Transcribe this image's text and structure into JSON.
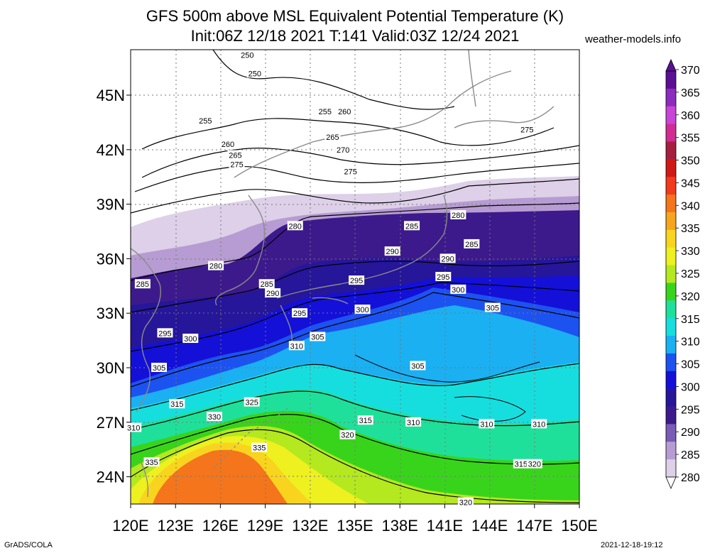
{
  "title": {
    "line1": "GFS 500m above MSL Equivalent Potential Temperature (K)",
    "line2": "Init:06Z 12/18 2021 T:141 Valid:03Z 12/24 2021",
    "site": "weather-models.info"
  },
  "axes": {
    "lat_ticks": [
      "45N",
      "42N",
      "39N",
      "36N",
      "33N",
      "30N",
      "27N",
      "24N"
    ],
    "lon_ticks": [
      "120E",
      "123E",
      "126E",
      "129E",
      "132E",
      "135E",
      "138E",
      "141E",
      "144E",
      "147E",
      "150E"
    ],
    "lon_range": [
      120,
      150
    ],
    "lat_range": [
      22.5,
      47.5
    ]
  },
  "colorbar": {
    "labels": [
      "370",
      "365",
      "360",
      "355",
      "350",
      "345",
      "340",
      "335",
      "330",
      "325",
      "320",
      "315",
      "310",
      "305",
      "300",
      "295",
      "290",
      "285",
      "280"
    ],
    "colors": [
      "#5a0f96",
      "#8c2bbd",
      "#c845d6",
      "#d12b94",
      "#a5203e",
      "#d11818",
      "#f23a1c",
      "#f4751b",
      "#f6a51f",
      "#f8d41f",
      "#eef01f",
      "#b4e81f",
      "#38d41c",
      "#1fe09b",
      "#17dede",
      "#1ab0f2",
      "#1c52f0",
      "#1410d8",
      "#26169a",
      "#3c1a8c",
      "#7a5bb5",
      "#b79cd3",
      "#ddd0e8"
    ]
  },
  "contour_labels": [
    {
      "text": "250",
      "lon": 127.8,
      "lat": 47.2
    },
    {
      "text": "250",
      "lon": 128.3,
      "lat": 46.2
    },
    {
      "text": "255",
      "lon": 125.0,
      "lat": 43.6
    },
    {
      "text": "255",
      "lon": 133.0,
      "lat": 44.1
    },
    {
      "text": "260",
      "lon": 134.3,
      "lat": 44.1
    },
    {
      "text": "260",
      "lon": 126.5,
      "lat": 42.3
    },
    {
      "text": "265",
      "lon": 127.0,
      "lat": 41.7
    },
    {
      "text": "275",
      "lon": 127.1,
      "lat": 41.2
    },
    {
      "text": "265",
      "lon": 133.5,
      "lat": 42.7
    },
    {
      "text": "270",
      "lon": 134.2,
      "lat": 42.0
    },
    {
      "text": "275",
      "lon": 134.7,
      "lat": 40.8
    },
    {
      "text": "275",
      "lon": 146.5,
      "lat": 43.1
    },
    {
      "text": "280",
      "lon": 131.0,
      "lat": 37.8
    },
    {
      "text": "280",
      "lon": 125.7,
      "lat": 35.6
    },
    {
      "text": "280",
      "lon": 141.9,
      "lat": 38.4
    },
    {
      "text": "285",
      "lon": 138.8,
      "lat": 37.8
    },
    {
      "text": "285",
      "lon": 142.8,
      "lat": 36.8
    },
    {
      "text": "285",
      "lon": 120.8,
      "lat": 34.6
    },
    {
      "text": "285",
      "lon": 129.1,
      "lat": 34.6
    },
    {
      "text": "290",
      "lon": 137.5,
      "lat": 36.4
    },
    {
      "text": "290",
      "lon": 141.2,
      "lat": 36.0
    },
    {
      "text": "290",
      "lon": 129.5,
      "lat": 34.1
    },
    {
      "text": "295",
      "lon": 135.1,
      "lat": 34.8
    },
    {
      "text": "295",
      "lon": 140.9,
      "lat": 35.0
    },
    {
      "text": "295",
      "lon": 122.3,
      "lat": 31.9
    },
    {
      "text": "295",
      "lon": 131.3,
      "lat": 33.0
    },
    {
      "text": "300",
      "lon": 141.9,
      "lat": 34.3
    },
    {
      "text": "300",
      "lon": 135.5,
      "lat": 33.2
    },
    {
      "text": "300",
      "lon": 124.0,
      "lat": 31.6
    },
    {
      "text": "305",
      "lon": 144.2,
      "lat": 33.3
    },
    {
      "text": "305",
      "lon": 132.5,
      "lat": 31.7
    },
    {
      "text": "305",
      "lon": 121.9,
      "lat": 30.0
    },
    {
      "text": "305",
      "lon": 139.2,
      "lat": 30.1
    },
    {
      "text": "310",
      "lon": 131.1,
      "lat": 31.2
    },
    {
      "text": "310",
      "lon": 120.2,
      "lat": 26.7
    },
    {
      "text": "310",
      "lon": 138.9,
      "lat": 27.0
    },
    {
      "text": "310",
      "lon": 143.8,
      "lat": 26.9
    },
    {
      "text": "310",
      "lon": 147.3,
      "lat": 26.9
    },
    {
      "text": "315",
      "lon": 123.1,
      "lat": 28.0
    },
    {
      "text": "315",
      "lon": 135.7,
      "lat": 27.1
    },
    {
      "text": "315",
      "lon": 146.1,
      "lat": 24.7
    },
    {
      "text": "320",
      "lon": 134.5,
      "lat": 26.3
    },
    {
      "text": "320",
      "lon": 147.0,
      "lat": 24.7
    },
    {
      "text": "320",
      "lon": 142.4,
      "lat": 22.6
    },
    {
      "text": "325",
      "lon": 128.1,
      "lat": 28.1
    },
    {
      "text": "330",
      "lon": 125.6,
      "lat": 27.3
    },
    {
      "text": "335",
      "lon": 128.6,
      "lat": 25.6
    },
    {
      "text": "335",
      "lon": 121.4,
      "lat": 24.8
    }
  ],
  "footer": {
    "left": "GrADS/COLA",
    "right": "2021-12-18-19:12"
  }
}
